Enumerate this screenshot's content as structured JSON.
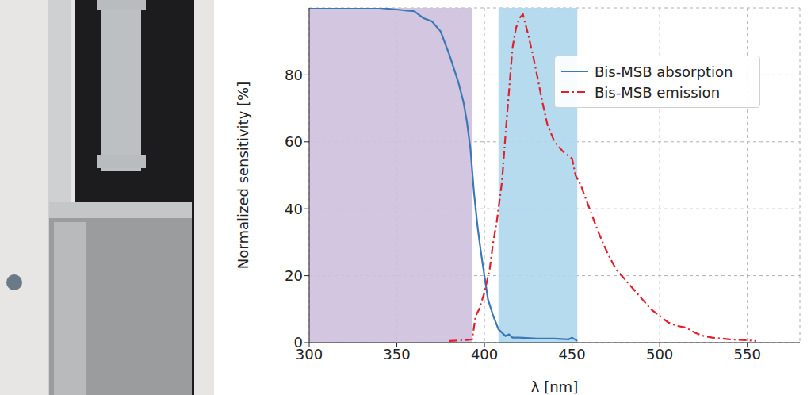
{
  "chart_data": {
    "type": "line",
    "xlabel": "λ [nm]",
    "ylabel": "Normalized sensitivity [%]",
    "xlim": [
      300,
      580
    ],
    "ylim": [
      0,
      100
    ],
    "xticks": [
      300,
      350,
      400,
      450,
      500,
      550
    ],
    "yticks": [
      0,
      20,
      40,
      60,
      80
    ],
    "grid": true,
    "legend": "upper right",
    "bands": [
      {
        "x": [
          300,
          393
        ],
        "color": "#cdc0dd"
      },
      {
        "x": [
          408,
          453
        ],
        "color": "#aed7ec"
      }
    ],
    "series": [
      {
        "name": "Bis-MSB absorption",
        "color": "#3b78b4",
        "line_style": "solid",
        "x": [
          300,
          320,
          340,
          360,
          365,
          370,
          375,
          380,
          385,
          388,
          390,
          392,
          394,
          396,
          398,
          400,
          402,
          405,
          408,
          410,
          412,
          414,
          416,
          420,
          430,
          440,
          448,
          450,
          453
        ],
        "values": [
          100,
          100,
          100,
          99,
          97,
          96,
          93,
          86,
          78,
          72,
          66,
          58,
          45,
          35,
          27,
          20,
          13,
          8,
          4,
          3,
          2,
          2.5,
          1.5,
          1.5,
          1.2,
          1.2,
          1,
          1.5,
          0.5
        ]
      },
      {
        "name": "Bis-MSB emission",
        "color": "#e0202a",
        "line_style": "dashdot",
        "x": [
          380,
          390,
          393,
          395,
          397,
          400,
          403,
          405,
          407,
          410,
          412,
          414,
          416,
          418,
          420,
          422,
          425,
          428,
          430,
          433,
          436,
          440,
          445,
          450,
          452,
          455,
          460,
          465,
          470,
          475,
          480,
          485,
          490,
          495,
          500,
          505,
          510,
          515,
          520,
          525,
          530,
          540,
          550,
          555
        ],
        "values": [
          0.5,
          0.8,
          1,
          8,
          10,
          15,
          22,
          30,
          36,
          48,
          62,
          75,
          88,
          94,
          97,
          98,
          92,
          85,
          80,
          72,
          65,
          60,
          57,
          55,
          50,
          47,
          40,
          33,
          27,
          22,
          19,
          16,
          13,
          10,
          8,
          6,
          5,
          4.5,
          3,
          2,
          1.5,
          1,
          0.7,
          0.5
        ]
      }
    ]
  }
}
